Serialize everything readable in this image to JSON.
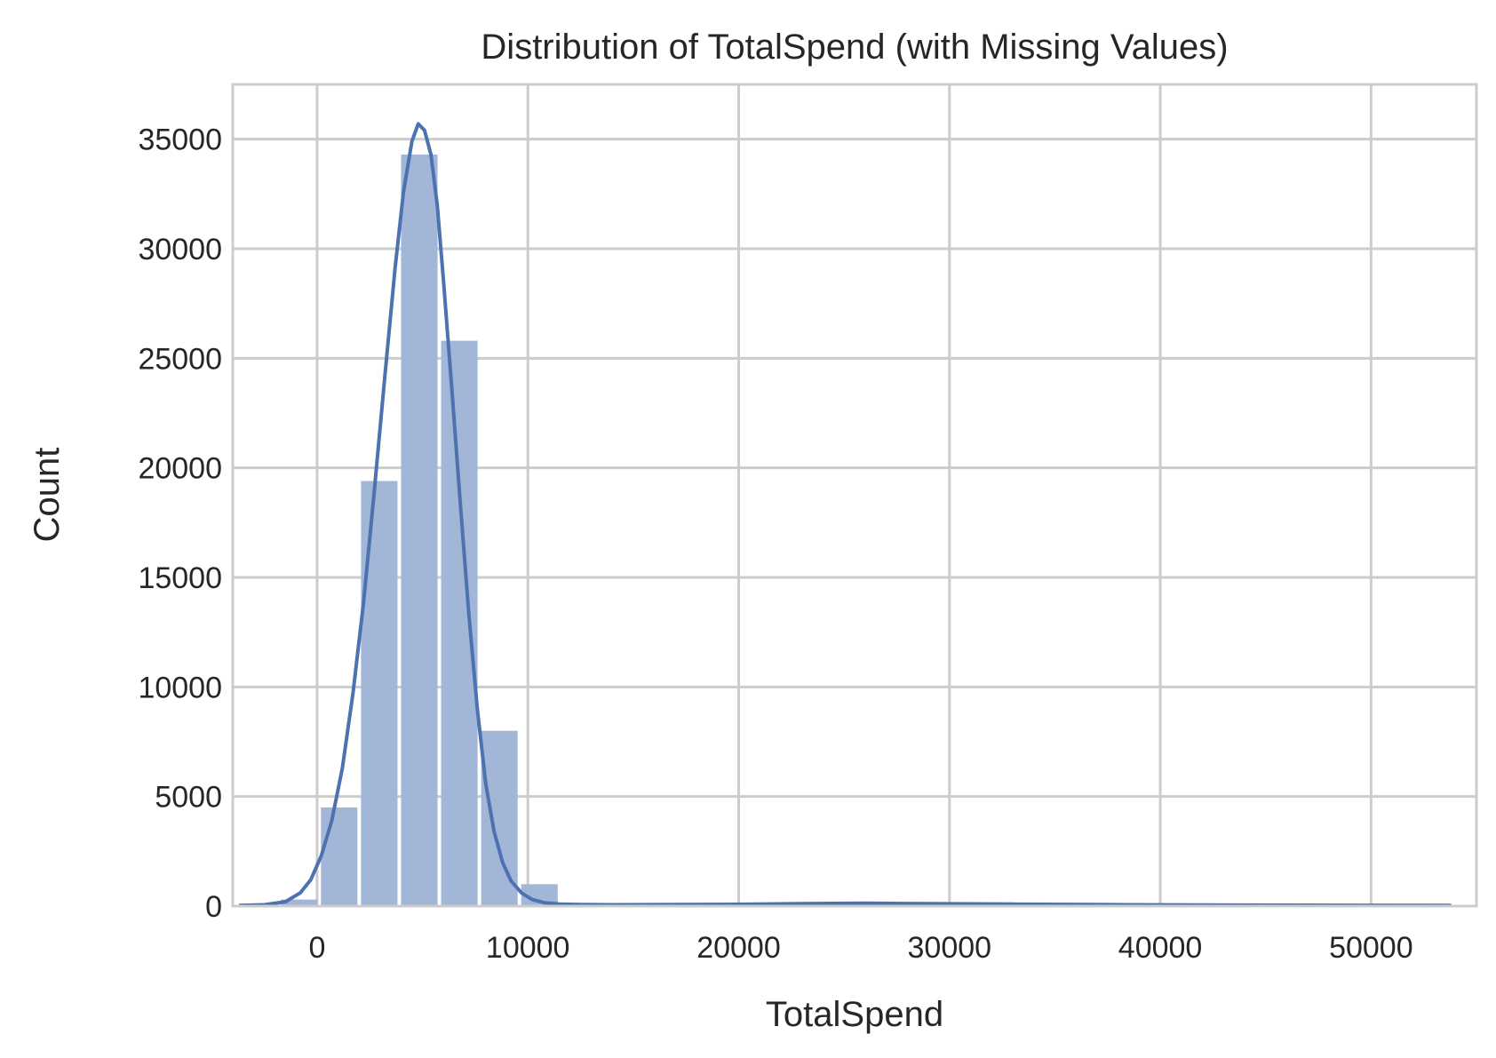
{
  "chart_data": {
    "type": "bar",
    "title": "Distribution of TotalSpend (with Missing Values)",
    "xlabel": "TotalSpend",
    "ylabel": "Count",
    "xlim": [
      -4000,
      55000
    ],
    "ylim": [
      0,
      37500
    ],
    "xticks": [
      0,
      10000,
      20000,
      30000,
      40000,
      50000
    ],
    "yticks": [
      0,
      5000,
      10000,
      15000,
      20000,
      25000,
      30000,
      35000
    ],
    "grid": true,
    "bin_width": 1900,
    "bins": [
      {
        "x0": -3700,
        "x1": -1800,
        "count": 50
      },
      {
        "x0": -1800,
        "x1": 100,
        "count": 300
      },
      {
        "x0": 100,
        "x1": 2000,
        "count": 4500
      },
      {
        "x0": 2000,
        "x1": 3900,
        "count": 19400
      },
      {
        "x0": 3900,
        "x1": 5800,
        "count": 34300
      },
      {
        "x0": 5800,
        "x1": 7700,
        "count": 25800
      },
      {
        "x0": 7700,
        "x1": 9600,
        "count": 8000
      },
      {
        "x0": 9600,
        "x1": 11500,
        "count": 1000
      },
      {
        "x0": 11500,
        "x1": 13400,
        "count": 80
      },
      {
        "x0": 13400,
        "x1": 53800,
        "count": 40
      }
    ],
    "kde": {
      "x": [
        -3700,
        -2500,
        -1500,
        -800,
        -300,
        200,
        700,
        1200,
        1700,
        2200,
        2700,
        3200,
        3700,
        4100,
        4500,
        4800,
        5100,
        5400,
        5700,
        6000,
        6400,
        6800,
        7200,
        7600,
        8000,
        8400,
        8800,
        9200,
        9700,
        10200,
        10800,
        11500,
        12500,
        14000,
        17000,
        20000,
        23000,
        26000,
        29000,
        33000,
        37000,
        42000,
        47000,
        53800
      ],
      "y": [
        30,
        60,
        200,
        600,
        1200,
        2300,
        3900,
        6300,
        9700,
        13800,
        18800,
        24000,
        29100,
        32600,
        34900,
        35700,
        35400,
        34300,
        32000,
        28500,
        23500,
        18300,
        13300,
        9000,
        5600,
        3400,
        2000,
        1150,
        600,
        300,
        150,
        90,
        70,
        60,
        70,
        80,
        110,
        130,
        110,
        90,
        70,
        50,
        40,
        30
      ]
    },
    "colors": {
      "bar_fill": "#a2b6d8",
      "kde_line": "#4c72b0",
      "grid": "#cccccc",
      "spine": "#cccccc",
      "text": "#262626"
    }
  }
}
